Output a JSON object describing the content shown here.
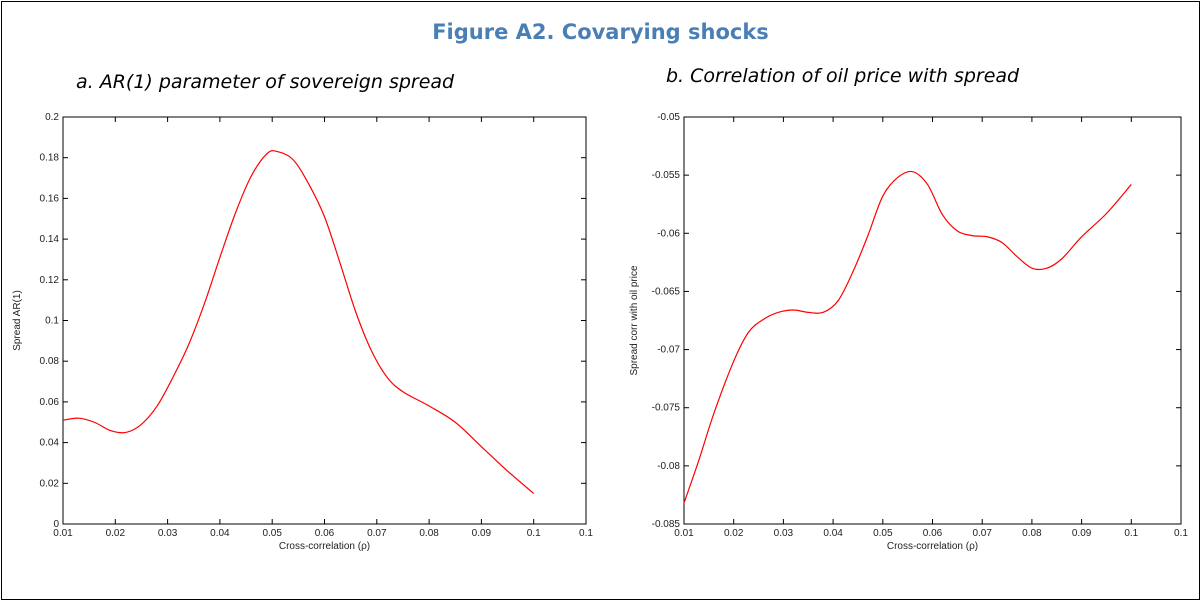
{
  "figure_title": "Figure A2. Covarying shocks",
  "chart_data": [
    {
      "type": "line",
      "panel_title": "a. AR(1) parameter of sovereign spread",
      "xlabel": "Cross-correlation (ρ)",
      "ylabel": "Spread AR(1)",
      "xlim": [
        0.01,
        0.1
      ],
      "ylim": [
        0,
        0.2
      ],
      "xticks": [
        "0.01",
        "0.02",
        "0.03",
        "0.04",
        "0.05",
        "0.06",
        "0.07",
        "0.08",
        "0.09",
        "0.1",
        "0.1"
      ],
      "yticks": [
        "0",
        "0.02",
        "0.04",
        "0.06",
        "0.08",
        "0.1",
        "0.12",
        "0.14",
        "0.16",
        "0.18",
        "0.2"
      ],
      "grid": false,
      "color": "#ff0000",
      "x": [
        0.01,
        0.013,
        0.016,
        0.019,
        0.022,
        0.025,
        0.028,
        0.031,
        0.034,
        0.037,
        0.04,
        0.043,
        0.046,
        0.049,
        0.051,
        0.054,
        0.057,
        0.06,
        0.063,
        0.066,
        0.069,
        0.072,
        0.075,
        0.08,
        0.085,
        0.09,
        0.095,
        0.1
      ],
      "y": [
        0.051,
        0.052,
        0.05,
        0.046,
        0.045,
        0.049,
        0.058,
        0.072,
        0.088,
        0.108,
        0.131,
        0.153,
        0.171,
        0.182,
        0.183,
        0.179,
        0.167,
        0.151,
        0.128,
        0.104,
        0.085,
        0.072,
        0.065,
        0.058,
        0.05,
        0.038,
        0.026,
        0.015
      ]
    },
    {
      "type": "line",
      "panel_title": "b. Correlation of oil price with spread",
      "xlabel": "Cross-correlation (ρ)",
      "ylabel": "Spread corr with oil price",
      "xlim": [
        0.01,
        0.1
      ],
      "ylim": [
        -0.085,
        -0.05
      ],
      "xticks": [
        "0.01",
        "0.02",
        "0.03",
        "0.04",
        "0.05",
        "0.06",
        "0.07",
        "0.08",
        "0.09",
        "0.1",
        "0.1"
      ],
      "yticks": [
        "-0.085",
        "-0.08",
        "-0.075",
        "-0.07",
        "-0.065",
        "-0.06",
        "-0.055",
        "-0.05"
      ],
      "grid": false,
      "color": "#ff0000",
      "x": [
        0.01,
        0.013,
        0.016,
        0.02,
        0.023,
        0.026,
        0.029,
        0.032,
        0.035,
        0.038,
        0.041,
        0.044,
        0.047,
        0.05,
        0.053,
        0.056,
        0.059,
        0.062,
        0.065,
        0.068,
        0.071,
        0.074,
        0.077,
        0.08,
        0.083,
        0.086,
        0.09,
        0.095,
        0.1
      ],
      "y": [
        -0.0832,
        -0.0795,
        -0.0755,
        -0.071,
        -0.0685,
        -0.0674,
        -0.0668,
        -0.0666,
        -0.0668,
        -0.0668,
        -0.0658,
        -0.0633,
        -0.0602,
        -0.0568,
        -0.0552,
        -0.0547,
        -0.0558,
        -0.0584,
        -0.0598,
        -0.0602,
        -0.0603,
        -0.0608,
        -0.062,
        -0.063,
        -0.063,
        -0.0622,
        -0.0603,
        -0.0583,
        -0.0558
      ]
    }
  ]
}
